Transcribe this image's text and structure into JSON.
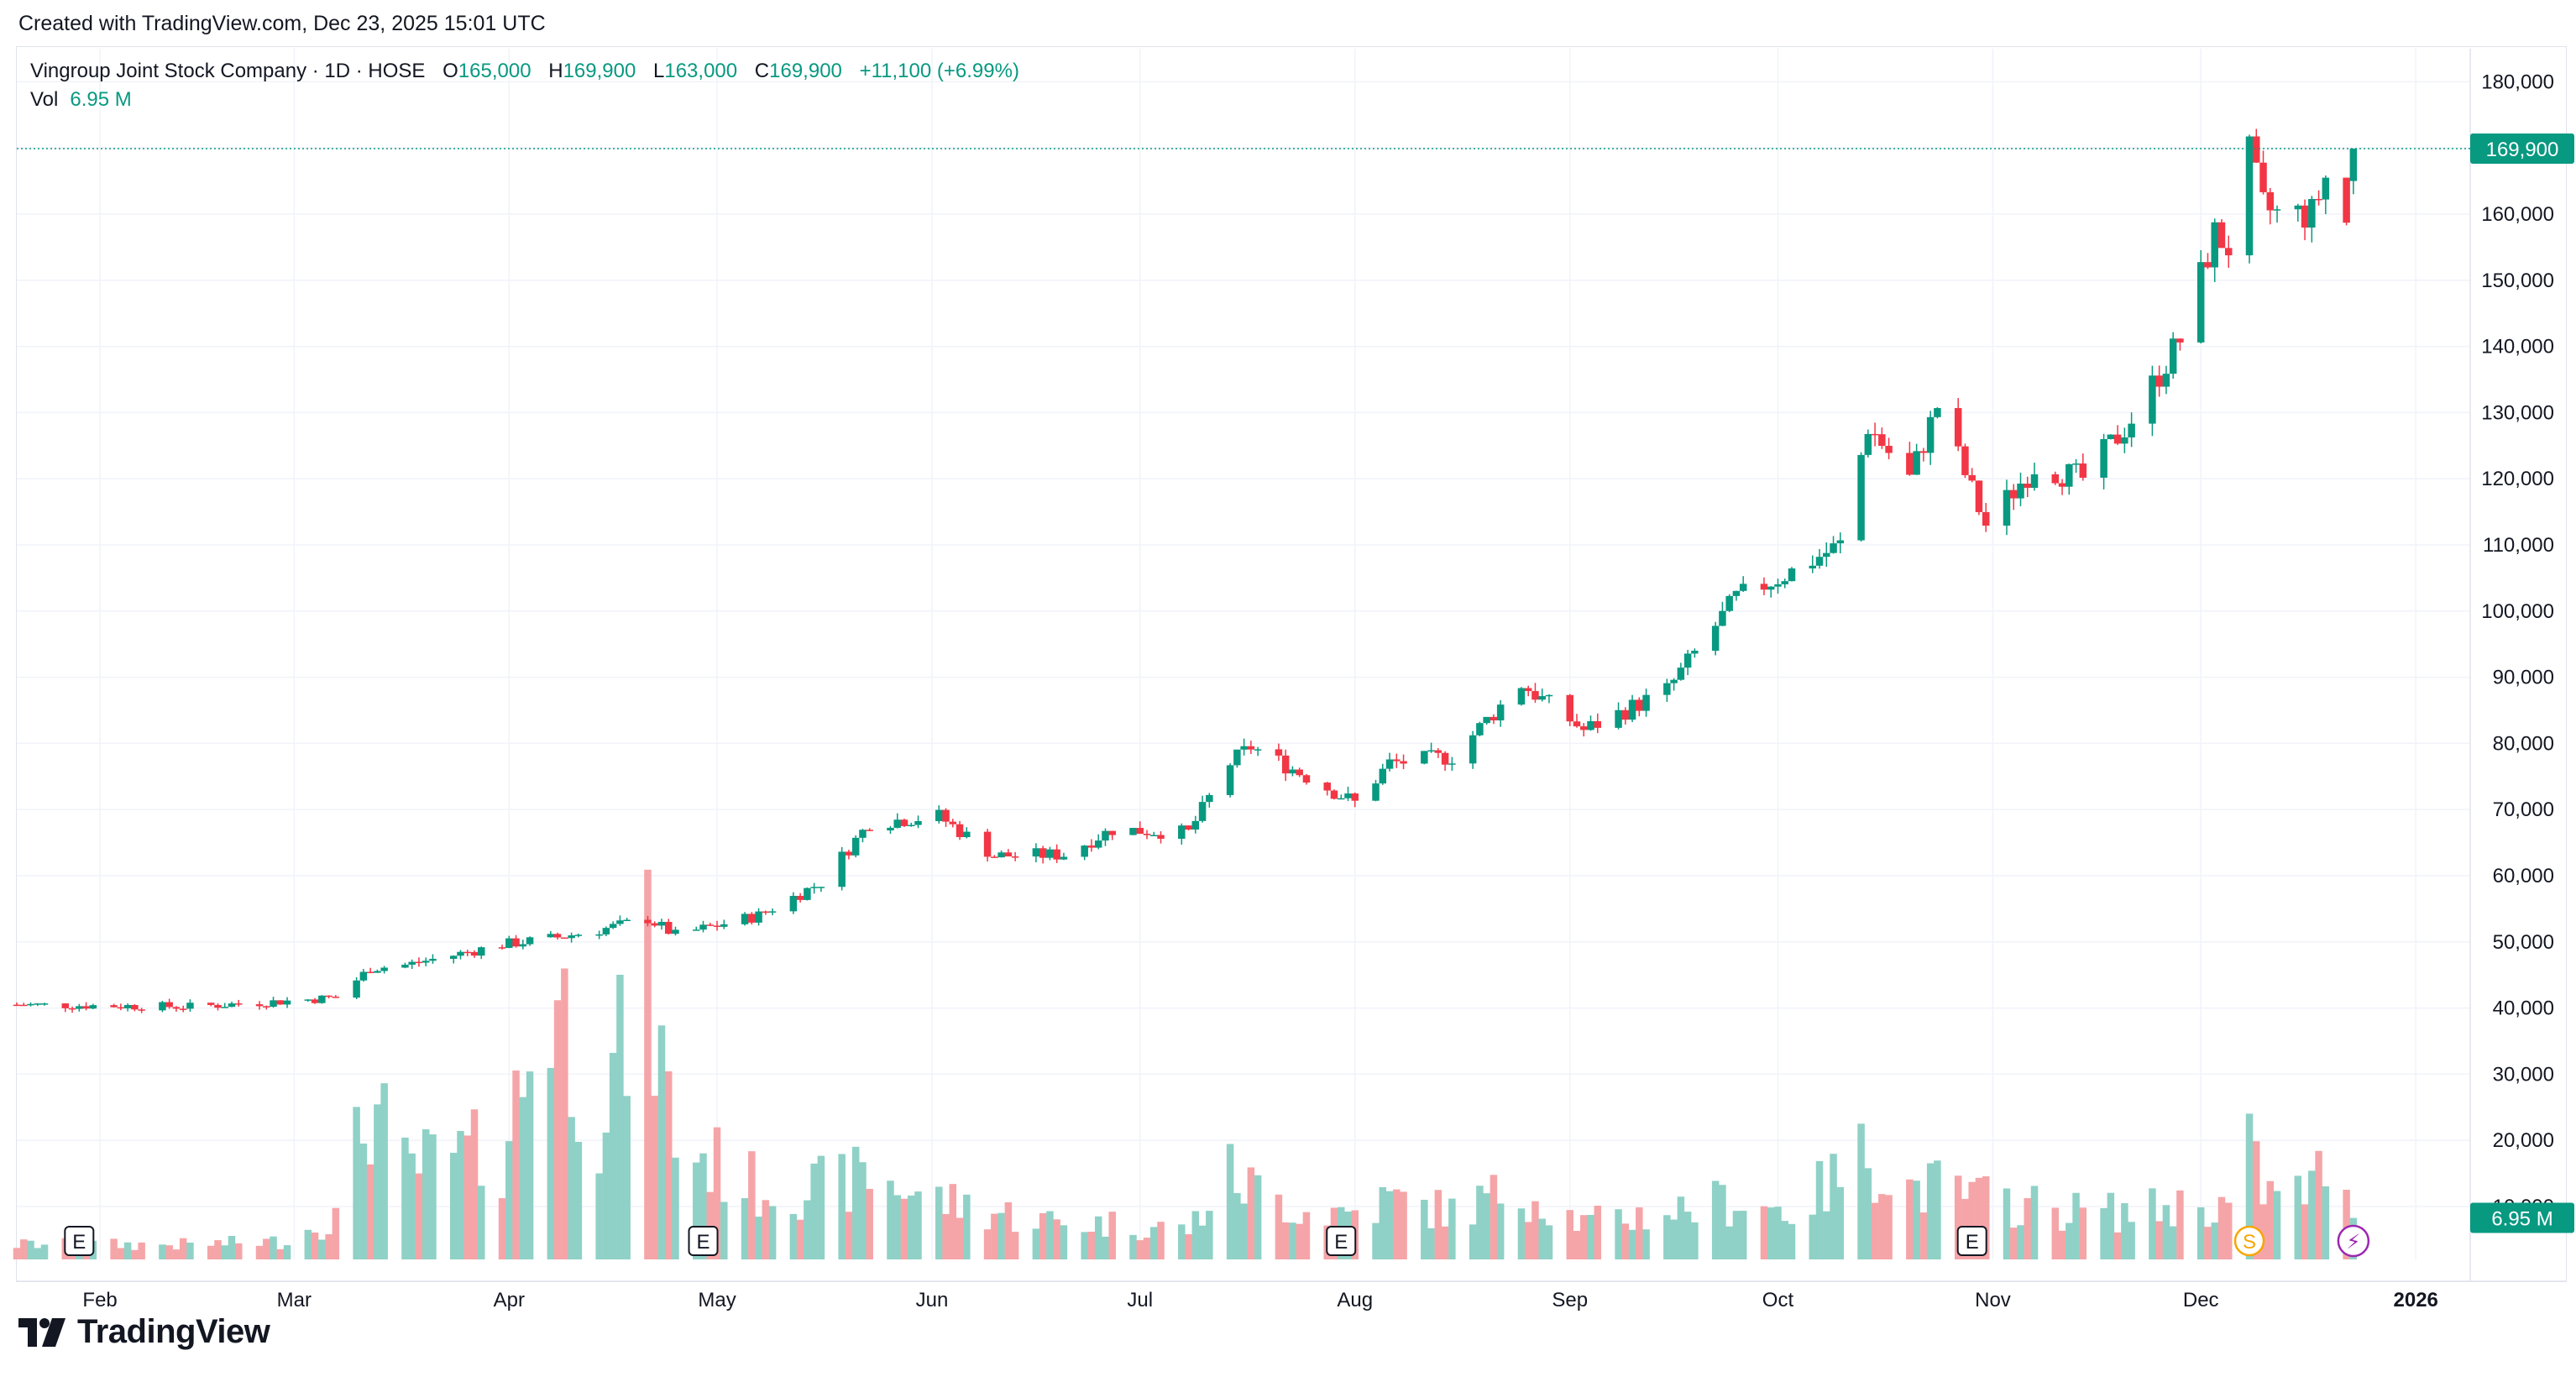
{
  "header": {
    "created_text": "Created with TradingView.com, Dec 23, 2025 15:01 UTC"
  },
  "legend": {
    "symbol": "Vingroup Joint Stock Company · 1D · HOSE",
    "open_label": "O",
    "open": "165,000",
    "high_label": "H",
    "high": "169,900",
    "low_label": "L",
    "low": "163,000",
    "close_label": "C",
    "close": "169,900",
    "change": "+11,100 (+6.99%)",
    "vol_label": "Vol",
    "vol_value": "6.95 M"
  },
  "colors": {
    "up": "#089981",
    "down": "#f23645",
    "up_vol": "#8fd1c6",
    "down_vol": "#f5a5a8",
    "grid": "#f0f3fa",
    "text": "#131722"
  },
  "price_tag": {
    "value": "169,900",
    "price": 169900
  },
  "volume_tag": {
    "value": "6.95 M"
  },
  "events": [
    {
      "type": "earnings",
      "label": "E",
      "date": "2025-01-29"
    },
    {
      "type": "earnings",
      "label": "E",
      "date": "2025-04-29"
    },
    {
      "type": "earnings",
      "label": "E",
      "date": "2025-07-30"
    },
    {
      "type": "earnings",
      "label": "E",
      "date": "2025-10-29"
    },
    {
      "type": "split",
      "label": "S",
      "date": "2025-12-08",
      "icon": "split-icon"
    },
    {
      "type": "flash",
      "label": "⚡",
      "date": "2025-12-23",
      "icon": "lightning-icon"
    }
  ],
  "footer": {
    "brand": "TradingView",
    "logo_icon": "tradingview-logo-icon"
  },
  "chart_data": {
    "type": "candlestick",
    "title": "Vingroup Joint Stock Company · 1D · HOSE",
    "x_axis": {
      "labels": [
        {
          "text": "Feb",
          "date": "2025-02-01"
        },
        {
          "text": "Mar",
          "date": "2025-03-01"
        },
        {
          "text": "Apr",
          "date": "2025-04-01"
        },
        {
          "text": "May",
          "date": "2025-05-01"
        },
        {
          "text": "Jun",
          "date": "2025-06-01"
        },
        {
          "text": "Jul",
          "date": "2025-07-01"
        },
        {
          "text": "Aug",
          "date": "2025-08-01"
        },
        {
          "text": "Sep",
          "date": "2025-09-01"
        },
        {
          "text": "Oct",
          "date": "2025-10-01"
        },
        {
          "text": "Nov",
          "date": "2025-11-01"
        },
        {
          "text": "Dec",
          "date": "2025-12-01"
        },
        {
          "text": "2026",
          "date": "2026-01-01",
          "bold": true
        }
      ],
      "range": [
        "2025-01-20",
        "2026-01-08"
      ]
    },
    "y_axis": {
      "ticks": [
        {
          "text": "180,000",
          "value": 180000
        },
        {
          "text": "170,000",
          "value": 170000
        },
        {
          "text": "160,000",
          "value": 160000
        },
        {
          "text": "150,000",
          "value": 150000
        },
        {
          "text": "140,000",
          "value": 140000
        },
        {
          "text": "130,000",
          "value": 130000
        },
        {
          "text": "120,000",
          "value": 120000
        },
        {
          "text": "110,000",
          "value": 110000
        },
        {
          "text": "100,000",
          "value": 100000
        },
        {
          "text": "90,000",
          "value": 90000
        },
        {
          "text": "80,000",
          "value": 80000
        },
        {
          "text": "70,000",
          "value": 70000
        },
        {
          "text": "60,000",
          "value": 60000
        },
        {
          "text": "50,000",
          "value": 50000
        },
        {
          "text": "40,000",
          "value": 40000
        },
        {
          "text": "30,000",
          "value": 30000
        },
        {
          "text": "20,000",
          "value": 20000
        },
        {
          "text": "10,000",
          "value": 10000
        }
      ],
      "range": [
        2000,
        185000
      ]
    },
    "volume_scale_max": 52000000,
    "grid": true,
    "anchors": [
      {
        "date": "2025-01-20",
        "close": 40500,
        "vol": 2500000
      },
      {
        "date": "2025-02-14",
        "close": 40200,
        "vol": 2500000
      },
      {
        "date": "2025-02-27",
        "close": 41000,
        "vol": 3000000
      },
      {
        "date": "2025-03-07",
        "close": 41600,
        "vol": 7000000
      },
      {
        "date": "2025-03-12",
        "close": 46000,
        "vol": 26000000
      },
      {
        "date": "2025-03-17",
        "close": 46500,
        "vol": 15000000
      },
      {
        "date": "2025-03-24",
        "close": 48000,
        "vol": 17000000
      },
      {
        "date": "2025-03-31",
        "close": 49600,
        "vol": 18000000
      },
      {
        "date": "2025-04-07",
        "close": 50500,
        "vol": 46000000
      },
      {
        "date": "2025-04-14",
        "close": 51800,
        "vol": 25000000
      },
      {
        "date": "2025-04-21",
        "close": 53500,
        "vol": 46000000
      },
      {
        "date": "2025-04-25",
        "close": 51000,
        "vol": 20000000
      },
      {
        "date": "2025-05-07",
        "close": 54000,
        "vol": 12000000
      },
      {
        "date": "2025-05-16",
        "close": 59000,
        "vol": 12000000
      },
      {
        "date": "2025-05-23",
        "close": 68000,
        "vol": 14000000
      },
      {
        "date": "2025-06-02",
        "close": 69000,
        "vol": 10000000
      },
      {
        "date": "2025-06-10",
        "close": 63000,
        "vol": 8000000
      },
      {
        "date": "2025-06-20",
        "close": 63200,
        "vol": 6000000
      },
      {
        "date": "2025-06-27",
        "close": 67000,
        "vol": 6000000
      },
      {
        "date": "2025-07-08",
        "close": 66500,
        "vol": 5000000
      },
      {
        "date": "2025-07-14",
        "close": 77000,
        "vol": 14000000
      },
      {
        "date": "2025-07-17",
        "close": 79500,
        "vol": 12000000
      },
      {
        "date": "2025-07-25",
        "close": 75000,
        "vol": 8000000
      },
      {
        "date": "2025-08-01",
        "close": 71000,
        "vol": 8000000
      },
      {
        "date": "2025-08-06",
        "close": 77000,
        "vol": 10000000
      },
      {
        "date": "2025-08-15",
        "close": 78000,
        "vol": 8000000
      },
      {
        "date": "2025-08-25",
        "close": 89000,
        "vol": 12000000
      },
      {
        "date": "2025-09-03",
        "close": 82000,
        "vol": 6000000
      },
      {
        "date": "2025-09-15",
        "close": 88000,
        "vol": 8000000
      },
      {
        "date": "2025-09-25",
        "close": 102000,
        "vol": 10000000
      },
      {
        "date": "2025-10-03",
        "close": 106000,
        "vol": 8000000
      },
      {
        "date": "2025-10-10",
        "close": 110000,
        "vol": 14000000
      },
      {
        "date": "2025-10-14",
        "close": 128000,
        "vol": 18000000
      },
      {
        "date": "2025-10-20",
        "close": 120000,
        "vol": 12000000
      },
      {
        "date": "2025-10-24",
        "close": 131000,
        "vol": 12000000
      },
      {
        "date": "2025-10-31",
        "close": 113000,
        "vol": 10000000
      },
      {
        "date": "2025-11-07",
        "close": 122000,
        "vol": 9000000
      },
      {
        "date": "2025-11-14",
        "close": 120000,
        "vol": 8000000
      },
      {
        "date": "2025-11-21",
        "close": 129000,
        "vol": 8000000
      },
      {
        "date": "2025-11-28",
        "close": 141000,
        "vol": 9000000
      },
      {
        "date": "2025-12-03",
        "close": 157000,
        "vol": 9000000
      },
      {
        "date": "2025-12-05",
        "close": 155000,
        "vol": 9000000
      },
      {
        "date": "2025-12-08",
        "close": 169000,
        "vol": 18000000
      },
      {
        "date": "2025-12-10",
        "close": 161000,
        "vol": 12000000
      },
      {
        "date": "2025-12-12",
        "close": 160000,
        "vol": 10000000
      },
      {
        "date": "2025-12-17",
        "close": 160000,
        "vol": 12000000
      },
      {
        "date": "2025-12-19",
        "close": 165500,
        "vol": 16000000
      },
      {
        "date": "2025-12-22",
        "close": 158800,
        "vol": 9000000
      },
      {
        "date": "2025-12-23",
        "open": 165000,
        "high": 169900,
        "low": 163000,
        "close": 169900,
        "vol": 6950000
      }
    ]
  }
}
